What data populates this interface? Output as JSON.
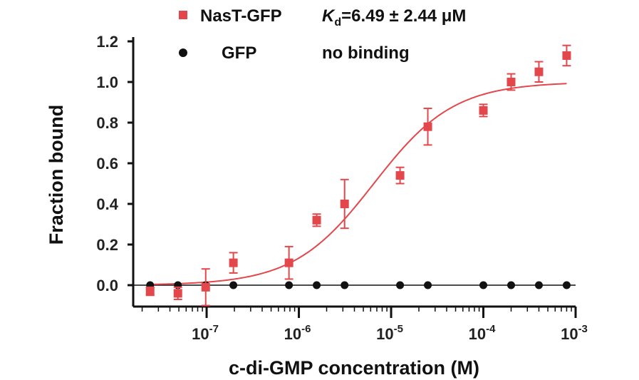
{
  "chart_data": {
    "type": "scatter",
    "xlabel": "c-di-GMP concentration (M)",
    "ylabel": "Fraction bound",
    "xscale": "log",
    "xlim": [
      1.6e-08,
      0.001
    ],
    "ylim": [
      -0.1,
      1.2
    ],
    "yticks": [
      "0.0",
      "0.2",
      "0.4",
      "0.6",
      "0.8",
      "1.0",
      "1.2"
    ],
    "xticks": [
      {
        "base": "10",
        "exp": "-7",
        "value": 1e-07
      },
      {
        "base": "10",
        "exp": "-6",
        "value": 1e-06
      },
      {
        "base": "10",
        "exp": "-5",
        "value": 1e-05
      },
      {
        "base": "10",
        "exp": "-4",
        "value": 0.0001
      },
      {
        "base": "10",
        "exp": "-3",
        "value": 0.001
      }
    ],
    "legend_position": "top",
    "series": [
      {
        "name": "NasT-GFP",
        "annotation_prefix": "K",
        "annotation_sub": "d",
        "annotation_value": "=6.49 ± 2.44 μM",
        "color": "#e4474b",
        "marker": "square",
        "x": [
          2.44e-08,
          4.88e-08,
          9.77e-08,
          1.95e-07,
          7.81e-07,
          1.56e-06,
          3.13e-06,
          1.25e-05,
          2.5e-05,
          0.0001,
          0.0002,
          0.0004,
          0.0008
        ],
        "y": [
          -0.03,
          -0.04,
          -0.01,
          0.11,
          0.11,
          0.32,
          0.4,
          0.54,
          0.78,
          0.86,
          1.0,
          1.05,
          1.13
        ],
        "error": [
          0.02,
          0.03,
          0.09,
          0.05,
          0.08,
          0.03,
          0.12,
          0.04,
          0.09,
          0.03,
          0.04,
          0.05,
          0.05
        ],
        "fit": {
          "model": "hill",
          "kd": 6.49e-06,
          "bottom": 0.0,
          "top": 1.0
        }
      },
      {
        "name": "GFP",
        "annotation_value": "no binding",
        "color": "#111111",
        "marker": "circle",
        "x": [
          2.44e-08,
          4.88e-08,
          9.77e-08,
          1.95e-07,
          7.81e-07,
          1.56e-06,
          3.13e-06,
          1.25e-05,
          2.5e-05,
          0.0001,
          0.0002,
          0.0004,
          0.0008
        ],
        "y": [
          0,
          0,
          0,
          0,
          0,
          0,
          0,
          0,
          0,
          0,
          0,
          0,
          0
        ]
      }
    ]
  }
}
